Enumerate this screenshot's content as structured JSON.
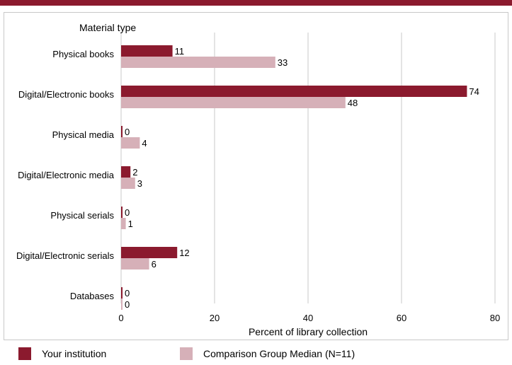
{
  "colors": {
    "accent_bar": "#8b1a2e",
    "series_institution": "#8b1a2e",
    "series_comparison": "#d6b0b8",
    "grid": "#c8c8c8",
    "frame": "#c8c8c8"
  },
  "legend": {
    "items": [
      {
        "label": "Your institution",
        "color": "#8b1a2e"
      },
      {
        "label": "Comparison Group Median (N=11)",
        "color": "#d6b0b8"
      }
    ]
  },
  "chart_data": {
    "type": "bar",
    "orientation": "horizontal",
    "category_axis_title": "Material type",
    "categories": [
      "Physical books",
      "Digital/Electronic books",
      "Physical media",
      "Digital/Electronic media",
      "Physical serials",
      "Digital/Electronic serials",
      "Databases"
    ],
    "series": [
      {
        "name": "Your institution",
        "values": [
          11,
          74,
          0,
          2,
          0,
          12,
          0
        ]
      },
      {
        "name": "Comparison Group Median (N=11)",
        "values": [
          33,
          48,
          4,
          3,
          1,
          6,
          0
        ]
      }
    ],
    "xlabel": "Percent of library collection",
    "xlim": [
      0,
      80
    ],
    "xticks": [
      0,
      20,
      40,
      60,
      80
    ],
    "grid": true,
    "legend_position": "bottom"
  }
}
